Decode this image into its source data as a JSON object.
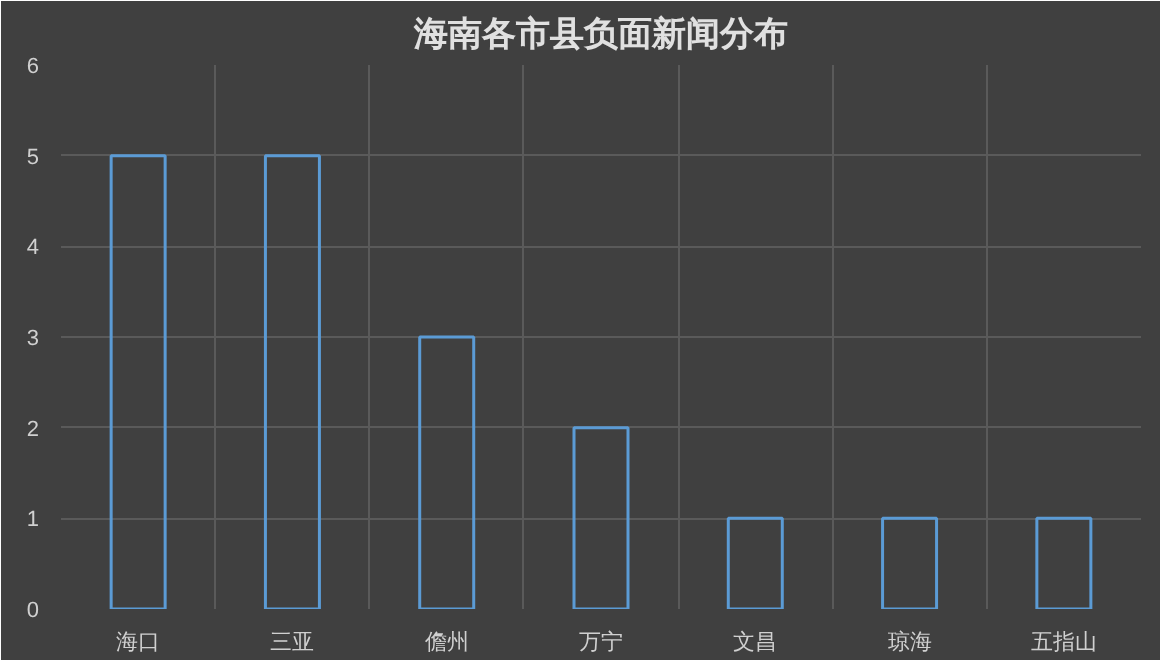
{
  "chart_data": {
    "type": "bar",
    "title": "海南各市县负面新闻分布",
    "categories": [
      "海口",
      "三亚",
      "儋州",
      "万宁",
      "文昌",
      "琼海",
      "五指山"
    ],
    "values": [
      5,
      5,
      3,
      2,
      1,
      1,
      1
    ],
    "color": "#5b9bd5",
    "ylim": [
      0,
      6
    ],
    "yticks": [
      0,
      1,
      2,
      3,
      4,
      5,
      6
    ],
    "grid": true
  }
}
